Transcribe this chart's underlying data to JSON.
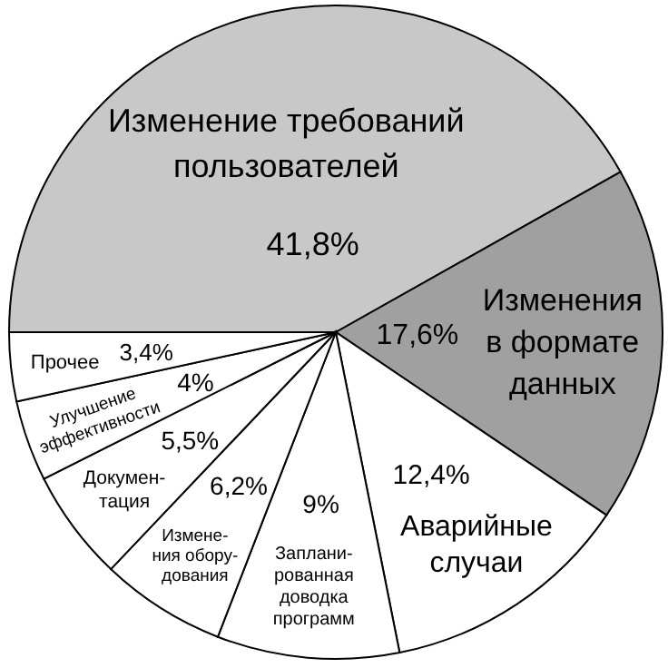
{
  "chart_data": {
    "type": "pie",
    "categories": [
      "Изменение требований\nпользователей",
      "Изменения\nв формате\nданных",
      "Аварийные\nслучаи",
      "Заплани-\nрованная\nдоводка\nпрограмм",
      "Измене-\nния обору-\nдования",
      "Докумен-\nтация",
      "Улучшение\nэффективности",
      "Прочее"
    ],
    "values": [
      41.8,
      17.6,
      12.4,
      9,
      6.2,
      5.5,
      4,
      3.4
    ],
    "value_labels": [
      "41,8%",
      "17,6%",
      "12,4%",
      "9%",
      "6,2%",
      "5,5%",
      "4%",
      "3,4%"
    ],
    "colors": [
      "#c8c8c8",
      "#a0a0a0",
      "#ffffff",
      "#ffffff",
      "#ffffff",
      "#ffffff",
      "#ffffff",
      "#ffffff"
    ]
  }
}
